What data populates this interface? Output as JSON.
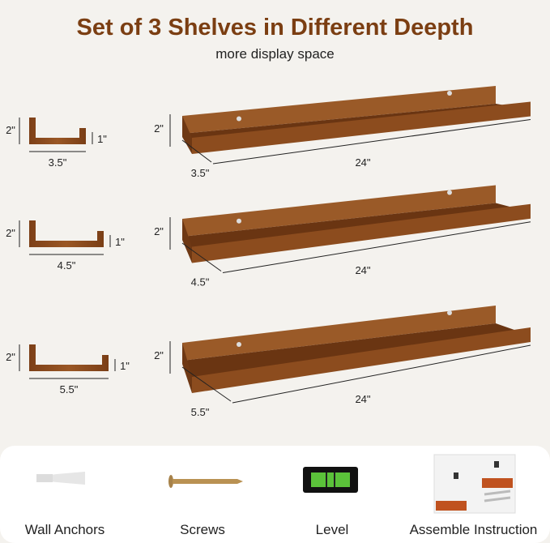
{
  "title": "Set of 3 Shelves in Different Deepth",
  "subtitle": "more display space",
  "shelves": [
    {
      "depth": "3.5\"",
      "height": "2\"",
      "lip": "1\"",
      "length": "24\""
    },
    {
      "depth": "4.5\"",
      "height": "2\"",
      "lip": "1\"",
      "length": "24\""
    },
    {
      "depth": "5.5\"",
      "height": "2\"",
      "lip": "1\"",
      "length": "24\""
    }
  ],
  "accessories": [
    {
      "label": "Wall Anchors",
      "icon": "wall-anchor-icon"
    },
    {
      "label": "Screws",
      "icon": "screw-icon"
    },
    {
      "label": "Level",
      "icon": "level-icon"
    },
    {
      "label": "Assemble Instruction",
      "icon": "instruction-booklet-icon"
    }
  ],
  "colors": {
    "title": "#7b3e12",
    "wood": "#8a4a1c",
    "wood_dark": "#5e2f10"
  }
}
